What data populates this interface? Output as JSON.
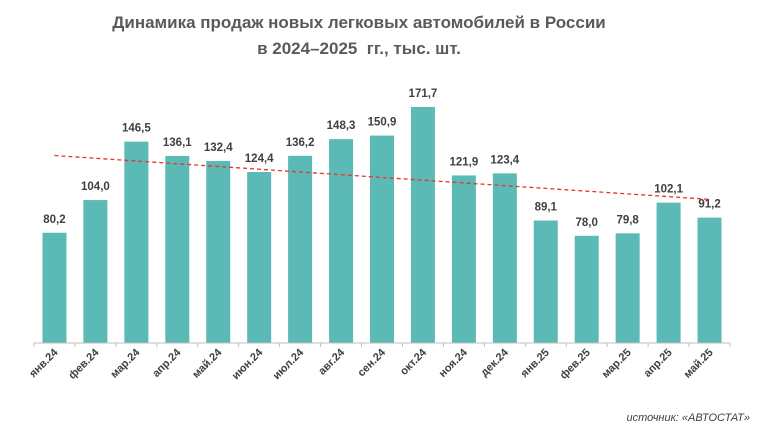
{
  "chart_data": {
    "type": "bar",
    "title_line1": "Динамика продаж новых легковых автомобилей в России",
    "title_line2": "в 2024–2025  гг., тыс. шт.",
    "categories": [
      "янв.24",
      "фев.24",
      "мар.24",
      "апр.24",
      "май.24",
      "июн.24",
      "июл.24",
      "авг.24",
      "сен.24",
      "окт.24",
      "ноя.24",
      "дек.24",
      "янв.25",
      "фев.25",
      "мар.25",
      "апр.25",
      "май.25"
    ],
    "values": [
      80.2,
      104.0,
      146.5,
      136.1,
      132.4,
      124.4,
      136.2,
      148.3,
      150.9,
      171.7,
      121.9,
      123.4,
      89.1,
      78.0,
      79.8,
      102.1,
      91.2
    ],
    "value_labels": [
      "80,2",
      "104,0",
      "146,5",
      "136,1",
      "132,4",
      "124,4",
      "136,2",
      "148,3",
      "150,9",
      "171,7",
      "121,9",
      "123,4",
      "89,1",
      "78,0",
      "79,8",
      "102,1",
      "91,2"
    ],
    "trendline": {
      "type": "linear",
      "start_value": 136.4,
      "end_value": 104.5,
      "color": "#e8342b"
    },
    "ylim": [
      0,
      180
    ],
    "bar_color": "#5bbab5",
    "source": "источник: «АВТОСТАТ»"
  }
}
